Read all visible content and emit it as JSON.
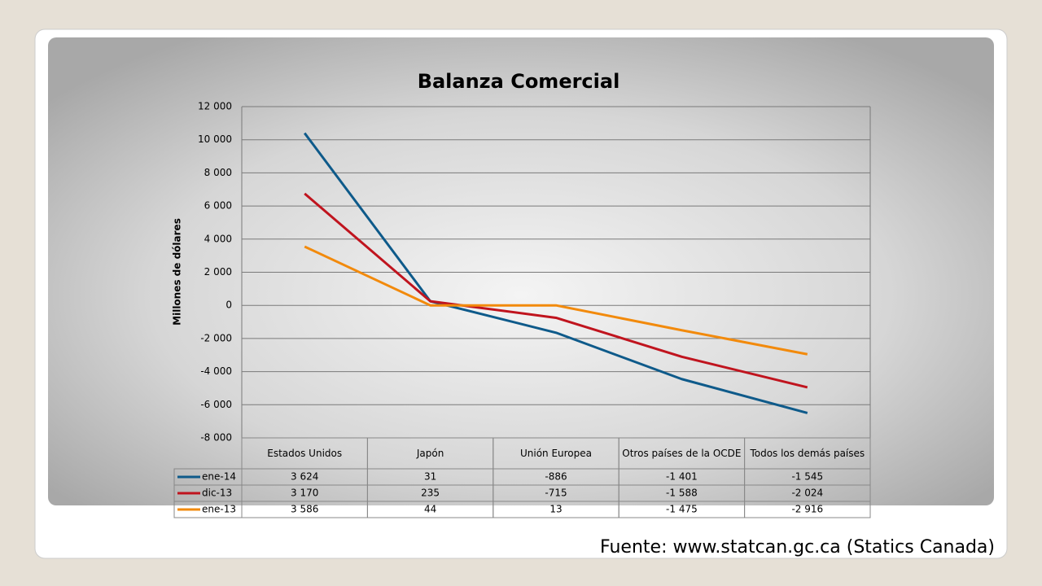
{
  "chart_data": {
    "type": "line",
    "title": "Balanza Comercial",
    "y_label": "Millones de dólares",
    "categories": [
      "Estados Unidos",
      "Japón",
      "Unión Europea",
      "Otros países de la OCDE",
      "Todos los demás países"
    ],
    "series": [
      {
        "name": "ene-14",
        "color": "#0e5a8a",
        "values": [
          10400,
          250,
          -1650,
          -4450,
          -6500
        ]
      },
      {
        "name": "dic-13",
        "color": "#c0141e",
        "values": [
          6750,
          250,
          -750,
          -3100,
          -4950
        ]
      },
      {
        "name": "ene-13",
        "color": "#f28a0c",
        "values": [
          3550,
          0,
          0,
          -1500,
          -2950
        ]
      }
    ],
    "data_table": [
      [
        "3 624",
        "31",
        "-886",
        "-1 401",
        "-1 545"
      ],
      [
        "3 170",
        "235",
        "-715",
        "-1 588",
        "-2 024"
      ],
      [
        "3 586",
        "44",
        "13",
        "-1 475",
        "-2 916"
      ]
    ],
    "ylim": [
      -8000,
      12000
    ],
    "yticks": [
      {
        "value": -8000,
        "label": "-8 000"
      },
      {
        "value": -6000,
        "label": "-6 000"
      },
      {
        "value": -4000,
        "label": "-4 000"
      },
      {
        "value": -2000,
        "label": "-2 000"
      },
      0,
      {
        "value": 2000,
        "label": "2 000"
      },
      {
        "value": 4000,
        "label": "4 000"
      },
      {
        "value": 6000,
        "label": "6 000"
      },
      {
        "value": 8000,
        "label": "8 000"
      },
      {
        "value": 10000,
        "label": "10 000"
      },
      {
        "value": 12000,
        "label": "12 000"
      }
    ],
    "grid": true,
    "source": "Fuente: www.statcan.gc.ca (Statics Canada)"
  }
}
